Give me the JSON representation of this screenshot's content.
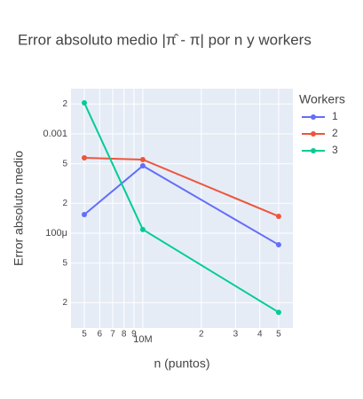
{
  "chart_data": {
    "type": "line",
    "title": "Error absoluto medio |π̂ - π| por n y workers",
    "x_label": "n (puntos)",
    "y_label": "Error absoluto medio",
    "legend_title": "Workers",
    "legend_position": "right",
    "xscale": "log",
    "yscale": "log",
    "grid": true,
    "x": [
      5000000,
      10000000,
      50000000
    ],
    "series": [
      {
        "name": "1",
        "color": "#636efa",
        "values": [
          0.000154,
          0.000477,
          7.65e-05
        ]
      },
      {
        "name": "2",
        "color": "#ef553b",
        "values": [
          0.000574,
          0.000551,
          0.000148
        ]
      },
      {
        "name": "3",
        "color": "#00cc96",
        "values": [
          0.00205,
          0.000109,
          1.6e-05
        ]
      }
    ],
    "xlim": [
      4270000,
      59200000
    ],
    "ylim": [
      1.11e-05,
      0.00285
    ],
    "xticks": [
      {
        "value": 5000000,
        "label": "5"
      },
      {
        "value": 6000000,
        "label": "6"
      },
      {
        "value": 7000000,
        "label": "7"
      },
      {
        "value": 8000000,
        "label": "8"
      },
      {
        "value": 9000000,
        "label": "9"
      },
      {
        "value": 10000000,
        "label": "10M"
      },
      {
        "value": 20000000,
        "label": "2"
      },
      {
        "value": 30000000,
        "label": "3"
      },
      {
        "value": 40000000,
        "label": "4"
      },
      {
        "value": 50000000,
        "label": "5"
      }
    ],
    "yticks": [
      {
        "value": 0.002,
        "label": "2"
      },
      0.001,
      {
        "value": 0.0005,
        "label": "5"
      },
      {
        "value": 0.0002,
        "label": "2"
      },
      {
        "value": 0.0001,
        "label": "100μ"
      },
      {
        "value": 5e-05,
        "label": "5"
      },
      {
        "value": 2e-05,
        "label": "2"
      }
    ]
  }
}
